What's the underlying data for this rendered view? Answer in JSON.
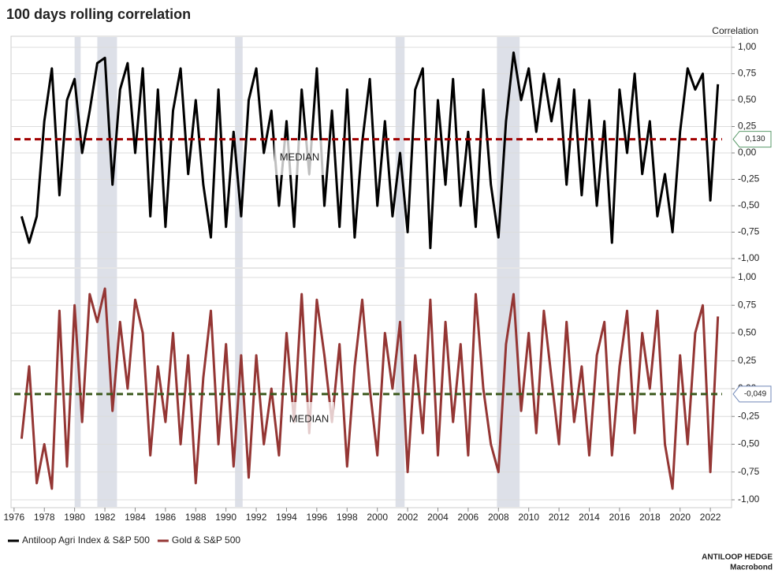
{
  "chart_data": [
    {
      "type": "line",
      "title": "100 days rolling correlation",
      "y_label": "Correlation",
      "x": [
        1976.5,
        1977,
        1977.5,
        1978,
        1978.5,
        1979,
        1979.5,
        1980,
        1980.5,
        1981,
        1981.5,
        1982,
        1982.5,
        1983,
        1983.5,
        1984,
        1984.5,
        1985,
        1985.5,
        1986,
        1986.5,
        1987,
        1987.5,
        1988,
        1988.5,
        1989,
        1989.5,
        1990,
        1990.5,
        1991,
        1991.5,
        1992,
        1992.5,
        1993,
        1993.5,
        1994,
        1994.5,
        1995,
        1995.5,
        1996,
        1996.5,
        1997,
        1997.5,
        1998,
        1998.5,
        1999,
        1999.5,
        2000,
        2000.5,
        2001,
        2001.5,
        2002,
        2002.5,
        2003,
        2003.5,
        2004,
        2004.5,
        2005,
        2005.5,
        2006,
        2006.5,
        2007,
        2007.5,
        2008,
        2008.5,
        2009,
        2009.5,
        2010,
        2010.5,
        2011,
        2011.5,
        2012,
        2012.5,
        2013,
        2013.5,
        2014,
        2014.5,
        2015,
        2015.5,
        2016,
        2016.5,
        2017,
        2017.5,
        2018,
        2018.5,
        2019,
        2019.5,
        2020,
        2020.5,
        2021,
        2021.5,
        2022,
        2022.5
      ],
      "series": [
        {
          "name": "Antiloop Agri Index & S&P 500",
          "color": "#000000",
          "values": [
            -0.6,
            -0.85,
            -0.6,
            0.3,
            0.8,
            -0.4,
            0.5,
            0.7,
            0.0,
            0.4,
            0.85,
            0.9,
            -0.3,
            0.6,
            0.85,
            0.0,
            0.8,
            -0.6,
            0.6,
            -0.7,
            0.4,
            0.8,
            -0.2,
            0.5,
            -0.3,
            -0.8,
            0.6,
            -0.7,
            0.2,
            -0.6,
            0.5,
            0.8,
            0.0,
            0.4,
            -0.5,
            0.3,
            -0.7,
            0.6,
            -0.2,
            0.8,
            -0.5,
            0.4,
            -0.7,
            0.6,
            -0.8,
            0.1,
            0.7,
            -0.5,
            0.3,
            -0.6,
            0.0,
            -0.75,
            0.6,
            0.8,
            -0.9,
            0.5,
            -0.3,
            0.7,
            -0.5,
            0.2,
            -0.7,
            0.6,
            -0.3,
            -0.8,
            0.3,
            0.95,
            0.5,
            0.8,
            0.2,
            0.75,
            0.3,
            0.7,
            -0.3,
            0.6,
            -0.4,
            0.5,
            -0.5,
            0.3,
            -0.85,
            0.6,
            0.0,
            0.75,
            -0.2,
            0.3,
            -0.6,
            -0.2,
            -0.75,
            0.2,
            0.8,
            0.6,
            0.75,
            -0.45,
            0.65
          ]
        }
      ],
      "median": {
        "value": 0.13,
        "label": "0,130",
        "text": "MEDIAN",
        "color": "#a00000",
        "box_color": "#5a9a6a"
      },
      "shaded_periods": [
        [
          1980.0,
          1980.4
        ],
        [
          1981.5,
          1982.8
        ],
        [
          1990.6,
          1991.1
        ],
        [
          2001.2,
          2001.8
        ],
        [
          2007.9,
          2009.4
        ]
      ],
      "xlim": [
        1975.8,
        2023.4
      ],
      "ylim": [
        -1,
        1
      ],
      "yticks": [
        {
          "value": 1,
          "label": "1,00"
        },
        {
          "value": 0.75,
          "label": "0,75"
        },
        {
          "value": 0.5,
          "label": "0,50"
        },
        {
          "value": 0.25,
          "label": "0,25"
        },
        {
          "value": 0,
          "label": "0,00"
        },
        {
          "value": -0.25,
          "label": "-0,25"
        },
        {
          "value": -0.5,
          "label": "-0,50"
        },
        {
          "value": -0.75,
          "label": "-0,75"
        },
        {
          "value": -1,
          "label": "-1,00"
        }
      ],
      "grid": true
    },
    {
      "type": "line",
      "x": [
        1976.5,
        1977,
        1977.5,
        1978,
        1978.5,
        1979,
        1979.5,
        1980,
        1980.5,
        1981,
        1981.5,
        1982,
        1982.5,
        1983,
        1983.5,
        1984,
        1984.5,
        1985,
        1985.5,
        1986,
        1986.5,
        1987,
        1987.5,
        1988,
        1988.5,
        1989,
        1989.5,
        1990,
        1990.5,
        1991,
        1991.5,
        1992,
        1992.5,
        1993,
        1993.5,
        1994,
        1994.5,
        1995,
        1995.5,
        1996,
        1996.5,
        1997,
        1997.5,
        1998,
        1998.5,
        1999,
        1999.5,
        2000,
        2000.5,
        2001,
        2001.5,
        2002,
        2002.5,
        2003,
        2003.5,
        2004,
        2004.5,
        2005,
        2005.5,
        2006,
        2006.5,
        2007,
        2007.5,
        2008,
        2008.5,
        2009,
        2009.5,
        2010,
        2010.5,
        2011,
        2011.5,
        2012,
        2012.5,
        2013,
        2013.5,
        2014,
        2014.5,
        2015,
        2015.5,
        2016,
        2016.5,
        2017,
        2017.5,
        2018,
        2018.5,
        2019,
        2019.5,
        2020,
        2020.5,
        2021,
        2021.5,
        2022,
        2022.5
      ],
      "series": [
        {
          "name": "Gold & S&P 500",
          "color": "#943634",
          "values": [
            -0.45,
            0.2,
            -0.85,
            -0.5,
            -0.9,
            0.7,
            -0.7,
            0.75,
            -0.3,
            0.85,
            0.6,
            0.9,
            -0.2,
            0.6,
            0.0,
            0.8,
            0.5,
            -0.6,
            0.2,
            -0.3,
            0.5,
            -0.5,
            0.3,
            -0.85,
            0.1,
            0.7,
            -0.5,
            0.4,
            -0.7,
            0.3,
            -0.8,
            0.3,
            -0.5,
            0.0,
            -0.6,
            0.5,
            -0.3,
            0.85,
            -0.4,
            0.8,
            0.3,
            -0.3,
            0.4,
            -0.7,
            0.2,
            0.8,
            0.0,
            -0.6,
            0.5,
            0.0,
            0.6,
            -0.75,
            0.3,
            -0.4,
            0.8,
            -0.6,
            0.6,
            -0.3,
            0.4,
            -0.6,
            0.85,
            0.0,
            -0.5,
            -0.75,
            0.4,
            0.85,
            -0.2,
            0.5,
            -0.4,
            0.7,
            0.1,
            -0.5,
            0.6,
            -0.3,
            0.2,
            -0.6,
            0.3,
            0.6,
            -0.6,
            0.2,
            0.7,
            -0.4,
            0.5,
            0.0,
            0.7,
            -0.5,
            -0.9,
            0.3,
            -0.5,
            0.5,
            0.75,
            -0.75,
            0.65
          ]
        }
      ],
      "median": {
        "value": -0.049,
        "label": "-0,049",
        "text": "MEDIAN",
        "color": "#3d5a1e",
        "box_color": "#7088b8"
      },
      "shaded_periods": [
        [
          1980.0,
          1980.4
        ],
        [
          1981.5,
          1982.8
        ],
        [
          1990.6,
          1991.1
        ],
        [
          2001.2,
          2001.8
        ],
        [
          2007.9,
          2009.4
        ]
      ],
      "xlim": [
        1975.8,
        2023.4
      ],
      "ylim": [
        -1,
        1
      ],
      "yticks": [
        {
          "value": 1,
          "label": "1,00"
        },
        {
          "value": 0.75,
          "label": "0,75"
        },
        {
          "value": 0.5,
          "label": "0,50"
        },
        {
          "value": 0.25,
          "label": "0,25"
        },
        {
          "value": 0,
          "label": "0,00"
        },
        {
          "value": -0.25,
          "label": "-0,25"
        },
        {
          "value": -0.5,
          "label": "-0,50"
        },
        {
          "value": -0.75,
          "label": "-0,75"
        },
        {
          "value": -1,
          "label": "-1,00"
        }
      ],
      "xticks": [
        1976,
        1978,
        1980,
        1982,
        1984,
        1986,
        1988,
        1990,
        1992,
        1994,
        1996,
        1998,
        2000,
        2002,
        2004,
        2006,
        2008,
        2010,
        2012,
        2014,
        2016,
        2018,
        2020,
        2022
      ],
      "grid": true
    }
  ],
  "source": [
    "ANTILOOP HEDGE",
    "Macrobond"
  ]
}
